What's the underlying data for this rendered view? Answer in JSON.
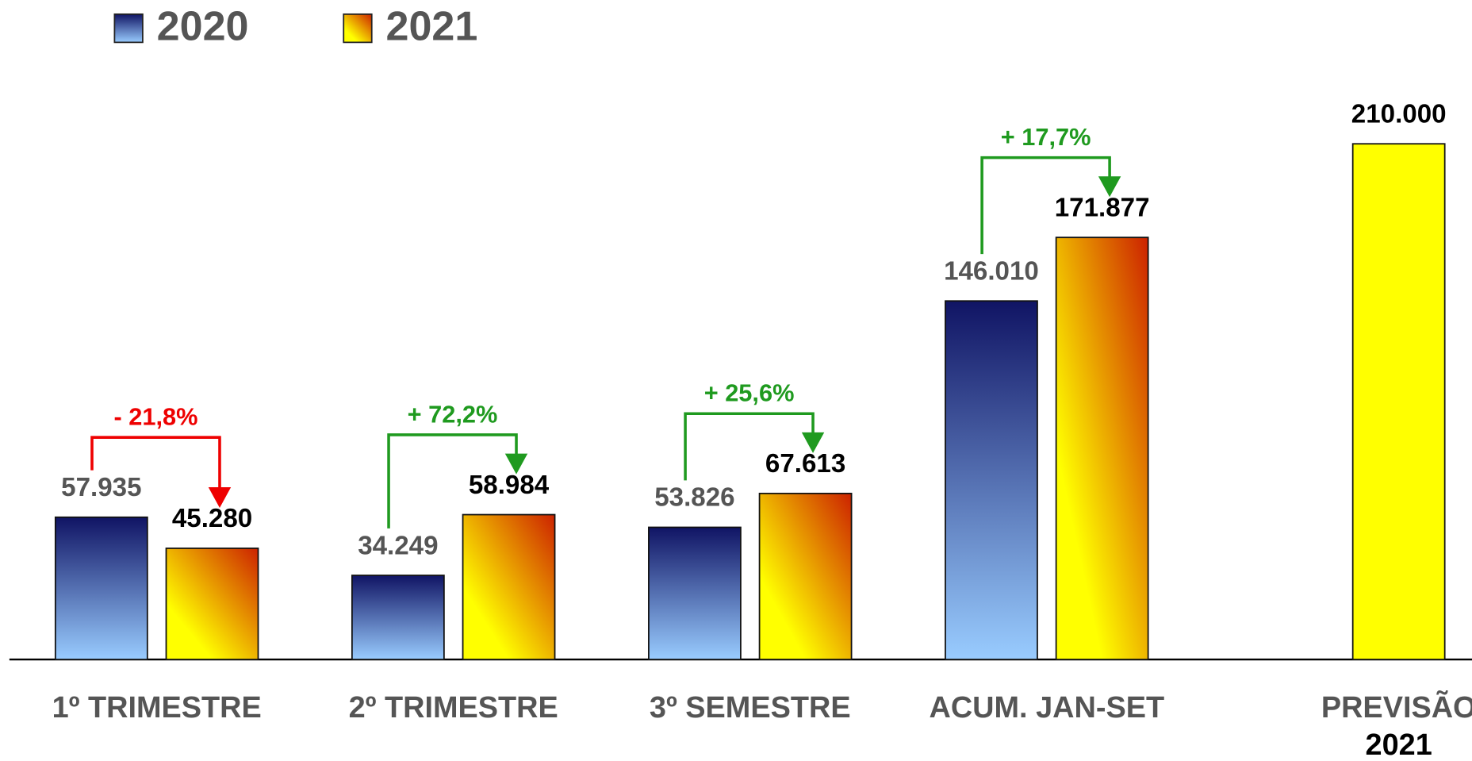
{
  "chart_data": {
    "type": "bar",
    "categories": [
      "1º TRIMESTRE",
      "2º TRIMESTRE",
      "3º SEMESTRE",
      "ACUM. JAN-SET",
      [
        "PREVISÃO",
        "2021"
      ]
    ],
    "series": [
      {
        "name": "2020",
        "color": [
          "#101464",
          "#99ccff"
        ],
        "values": [
          57935,
          34249,
          53826,
          146010,
          null
        ],
        "value_labels": [
          "57.935",
          "34.249",
          "53.826",
          "146.010",
          null
        ]
      },
      {
        "name": "2021",
        "color": [
          "#cc2200",
          "#ffff00"
        ],
        "values": [
          45280,
          58984,
          67613,
          171877,
          210000
        ],
        "value_labels": [
          "45.280",
          "58.984",
          "67.613",
          "171.877",
          "210.000"
        ],
        "point_colors": [
          null,
          null,
          null,
          null,
          "#ffff00"
        ]
      }
    ],
    "annotations": [
      {
        "text": "- 21,8%",
        "color": "#ee0000"
      },
      {
        "text": "+ 72,2%",
        "color": "#1f9a1f"
      },
      {
        "text": "+ 25,6%",
        "color": "#1f9a1f"
      },
      {
        "text": "+ 17,7%",
        "color": "#1f9a1f"
      }
    ],
    "ylim": [
      0,
      240000
    ]
  }
}
